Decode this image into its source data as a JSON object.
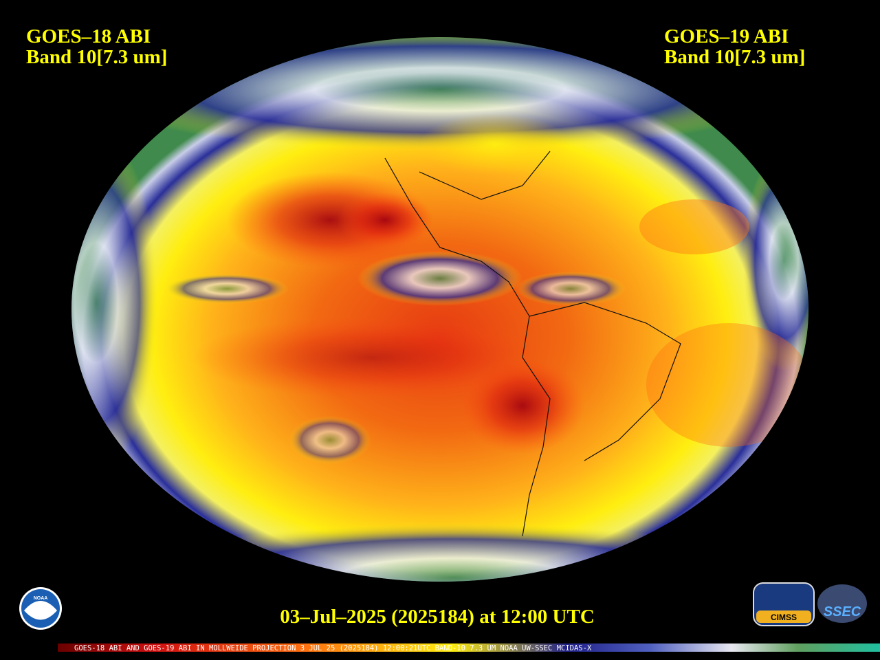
{
  "header": {
    "left": {
      "satellite": "GOES–18 ABI",
      "band": "Band 10[7.3 um]"
    },
    "right": {
      "satellite": "GOES–19 ABI",
      "band": "Band 10[7.3 um]"
    }
  },
  "timestamp": "03–Jul–2025 (2025184) at 12:00 UTC",
  "footer": "GOES-18 ABI AND GOES-19 ABI IN MOLLWEIDE PROJECTION 3 JUL 25 (2025184) 12:00:21UTC BAND-10 7.3 UM NOAA UW-SSEC MCIDAS-X",
  "logos": {
    "noaa": "NOAA",
    "cimss": "CIMSS",
    "ssec": "SSEC"
  }
}
